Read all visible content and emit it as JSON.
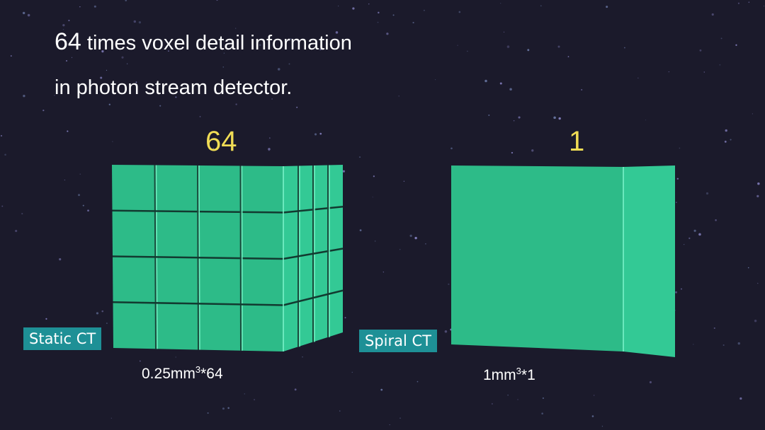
{
  "headline": {
    "number": "64",
    "line1": "times voxel detail information",
    "line2": "in photon stream detector."
  },
  "left": {
    "count": "64",
    "label": "Static CT",
    "volume_base": "0.25mm",
    "volume_exp": "3",
    "volume_mult": "*64",
    "grid": 4
  },
  "right": {
    "count": "1",
    "label": "Spiral CT",
    "volume_base": "1mm",
    "volume_exp": "3",
    "volume_mult": "*1",
    "grid": 1
  },
  "colors": {
    "background": "#1b1a2b",
    "cube": "#2fbf8c",
    "count": "#f0dc55",
    "tag": "#1e9096"
  }
}
